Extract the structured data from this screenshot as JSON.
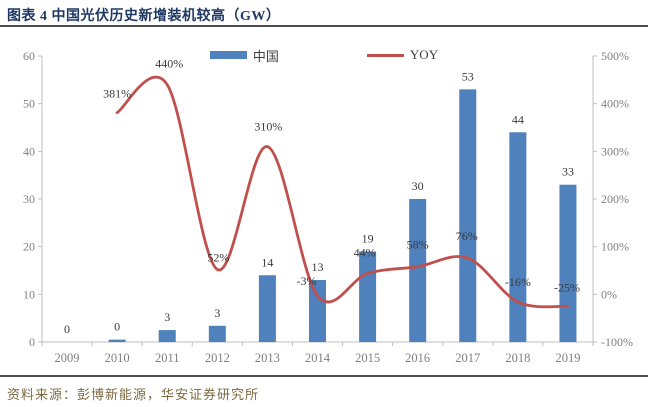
{
  "header": {
    "title": "图表 4 中国光伏历史新增装机较高（GW）"
  },
  "legend": [
    {
      "label": "中国",
      "type": "bar",
      "color": "#4F81BD"
    },
    {
      "label": "YOY",
      "type": "line",
      "color": "#C0504D"
    }
  ],
  "footer": {
    "source": "资料来源：彭博新能源，华安证券研究所"
  },
  "colors": {
    "bar": "#4F81BD",
    "line": "#C0504D",
    "axis": "#BFBFBF",
    "axis_text": "#7f7f7f",
    "data_label": "#3b3b3b",
    "title": "#1f3864",
    "source_text": "#7b6a41"
  },
  "chart_data": {
    "type": "bar",
    "title": "图表 4 中国光伏历史新增装机较高（GW）",
    "categories": [
      "2009",
      "2010",
      "2011",
      "2012",
      "2013",
      "2014",
      "2015",
      "2016",
      "2017",
      "2018",
      "2019"
    ],
    "series": [
      {
        "name": "中国",
        "type": "bar",
        "axis": "left",
        "unit": "GW",
        "values": [
          0,
          0,
          3,
          3,
          14,
          13,
          19,
          30,
          53,
          44,
          33
        ],
        "labels": [
          "0",
          "0",
          "3",
          "3",
          "14",
          "13",
          "19",
          "30",
          "53",
          "44",
          "33"
        ],
        "plot_values_estimated": [
          0,
          0.5,
          2.5,
          3.4,
          14,
          13,
          19,
          30,
          53,
          44,
          33
        ]
      },
      {
        "name": "YOY",
        "type": "line",
        "axis": "right",
        "unit": "%",
        "values": [
          null,
          381,
          440,
          52,
          310,
          -3,
          44,
          58,
          76,
          -16,
          -25
        ],
        "labels": [
          null,
          "381%",
          "440%",
          "52%",
          "310%",
          "-3%",
          "44%",
          "58%",
          "76%",
          "-16%",
          "-25%"
        ],
        "smoothed": true
      }
    ],
    "left_axis": {
      "min": 0,
      "max": 60,
      "ticks": [
        0,
        10,
        20,
        30,
        40,
        50,
        60
      ],
      "tick_labels": [
        "0",
        "10",
        "20",
        "30",
        "40",
        "50",
        "60"
      ]
    },
    "right_axis": {
      "min": -100,
      "max": 500,
      "ticks": [
        -100,
        0,
        100,
        200,
        300,
        400,
        500
      ],
      "tick_labels": [
        "-100%",
        "0%",
        "100%",
        "200%",
        "300%",
        "400%",
        "500%"
      ]
    },
    "grid": false,
    "legend_position": "top-center"
  }
}
